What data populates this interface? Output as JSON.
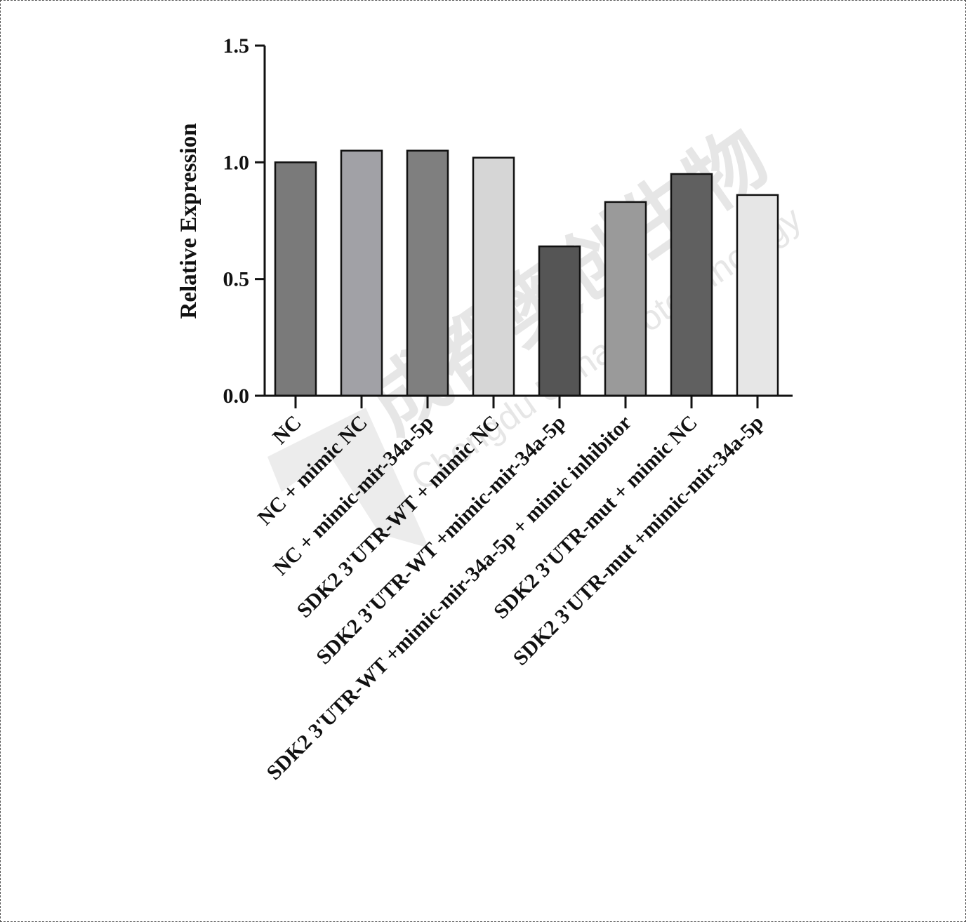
{
  "chart_data": {
    "type": "bar",
    "title": "",
    "xlabel": "",
    "ylabel": "Relative Expression",
    "ylim": [
      0,
      1.5
    ],
    "yticks": [
      "0.0",
      "0.5",
      "1.0",
      "1.5"
    ],
    "categories": [
      "NC",
      "NC + mimic NC",
      "NC + mimic-mir-34a-5p",
      "SDK2 3'UTR-WT + mimic NC",
      "SDK2 3'UTR-WT +mimic-mir-34a-5p",
      "SDK2 3'UTR-WT +mimic-mir-34a-5p + mimic inhibitor",
      "SDK2 3'UTR-mut + mimic NC",
      "SDK2 3'UTR-mut +mimic-mir-34a-5p"
    ],
    "values": [
      1.0,
      1.05,
      1.05,
      1.02,
      0.64,
      0.83,
      0.95,
      0.86
    ],
    "bar_colors": [
      "#7a7a7a",
      "#a1a1a6",
      "#7f7f7f",
      "#d6d6d6",
      "#555555",
      "#9a9a9a",
      "#606060",
      "#e6e6e6"
    ],
    "grid": false,
    "legend": "none"
  },
  "watermark": {
    "text_cn": "成都奥创生物",
    "text_en": "Chengdu Uona Biotechnology"
  }
}
